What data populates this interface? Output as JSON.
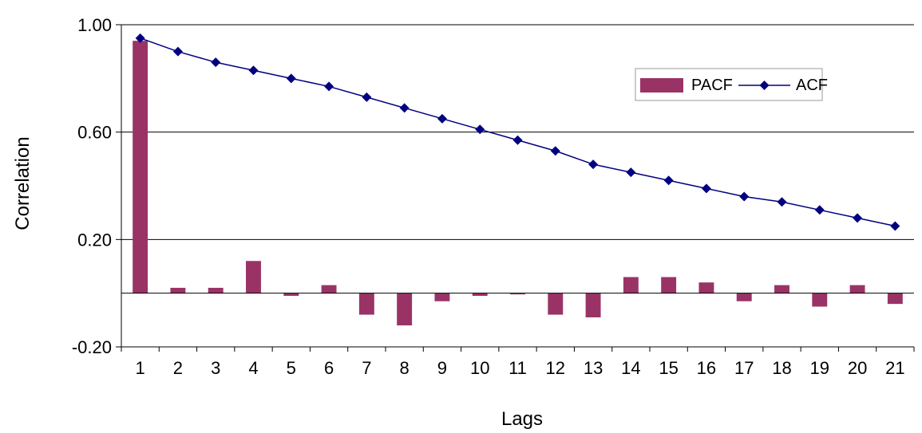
{
  "chart_data": {
    "type": "bar+line",
    "title": "",
    "xlabel": "Lags",
    "ylabel": "Correlation",
    "ylim": [
      -0.2,
      1.0
    ],
    "y_ticks": [
      "1.00",
      "0.60",
      "0.20",
      "-0.20"
    ],
    "y_tick_values": [
      1.0,
      0.6,
      0.2,
      -0.2
    ],
    "categories": [
      "1",
      "2",
      "3",
      "4",
      "5",
      "6",
      "7",
      "8",
      "9",
      "10",
      "11",
      "12",
      "13",
      "14",
      "15",
      "16",
      "17",
      "18",
      "19",
      "20",
      "21"
    ],
    "series": [
      {
        "name": "PACF",
        "type": "bar",
        "color": "#993366",
        "values": [
          0.94,
          0.02,
          0.02,
          0.12,
          -0.01,
          0.03,
          -0.08,
          -0.12,
          -0.03,
          -0.01,
          0.0,
          -0.08,
          -0.09,
          0.06,
          0.06,
          0.04,
          -0.03,
          0.03,
          -0.05,
          0.03,
          -0.04
        ]
      },
      {
        "name": "ACF",
        "type": "line",
        "color": "#000080",
        "values": [
          0.95,
          0.9,
          0.86,
          0.83,
          0.8,
          0.77,
          0.73,
          0.69,
          0.65,
          0.61,
          0.57,
          0.53,
          0.48,
          0.45,
          0.42,
          0.39,
          0.36,
          0.34,
          0.31,
          0.28,
          0.25
        ]
      }
    ],
    "grid": true,
    "legend": {
      "position": "top-right"
    }
  }
}
